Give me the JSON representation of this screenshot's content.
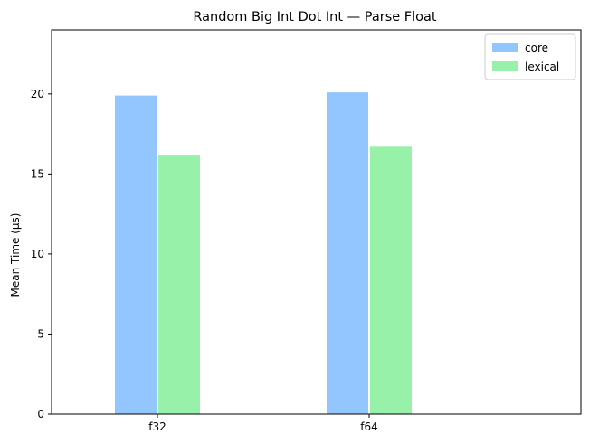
{
  "chart_data": {
    "type": "bar",
    "title": "Random Big Int Dot Int — Parse Float",
    "xlabel": "",
    "ylabel": "Mean Time (µs)",
    "categories": [
      "f32",
      "f64"
    ],
    "series": [
      {
        "name": "core",
        "values": [
          19.9,
          20.1
        ],
        "color": "#93c6fe"
      },
      {
        "name": "lexical",
        "values": [
          16.2,
          16.7
        ],
        "color": "#98f1a8"
      }
    ],
    "ylim": [
      0,
      24
    ],
    "yticks": [
      0,
      5,
      10,
      15,
      20
    ],
    "legend": "top-right",
    "grid": false
  }
}
